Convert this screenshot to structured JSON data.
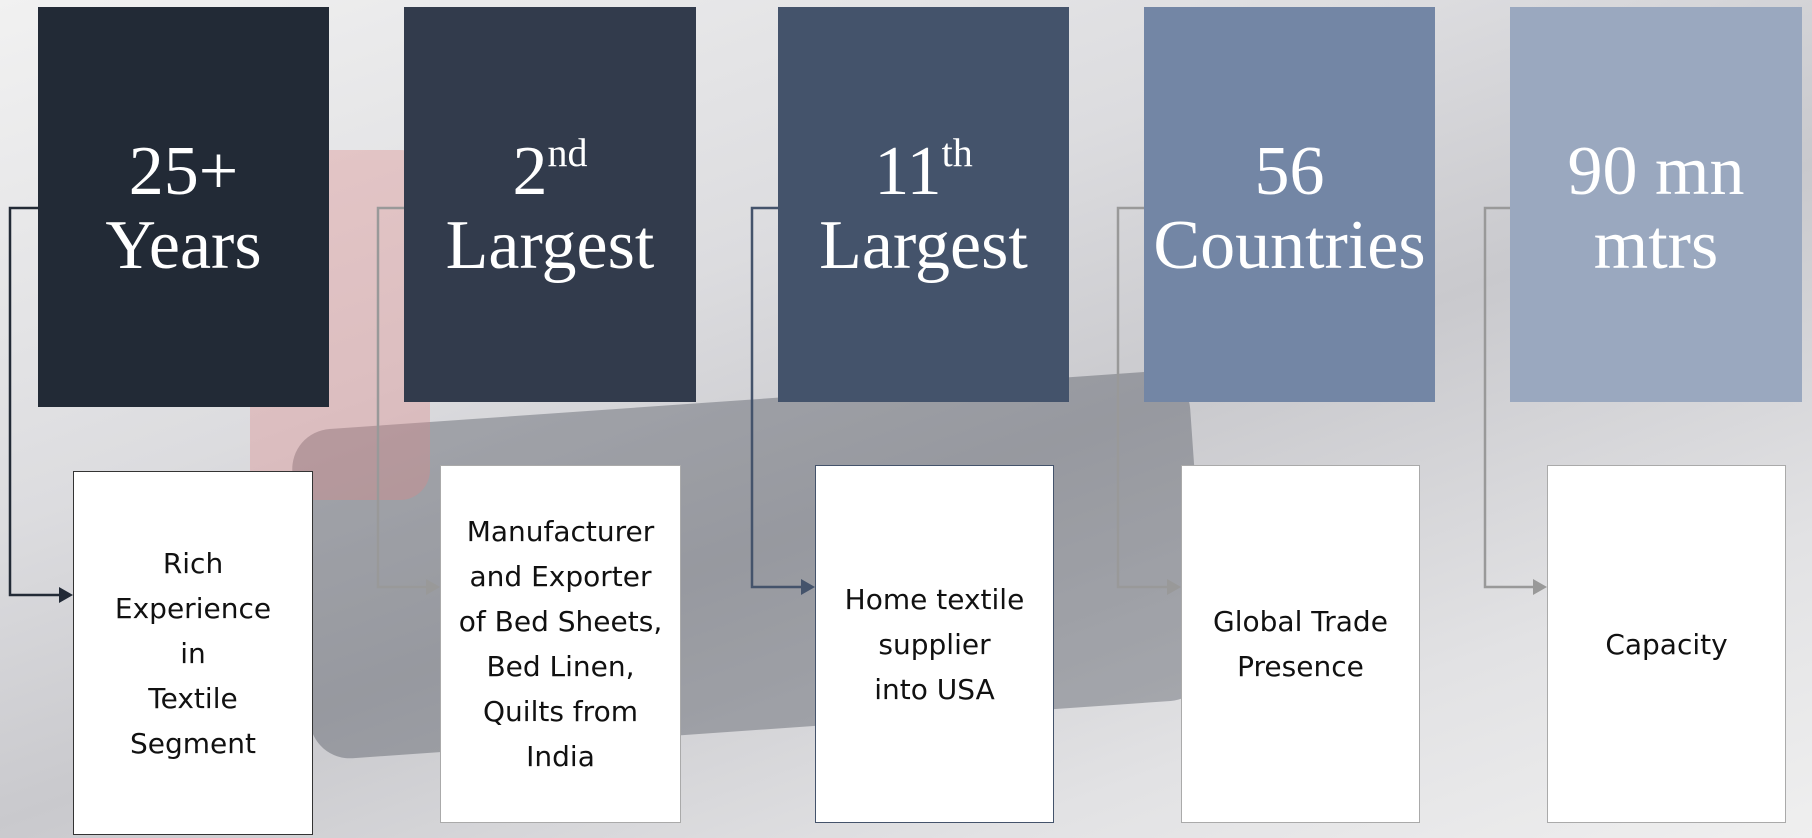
{
  "items": [
    {
      "headline": {
        "number": "25+",
        "word": "Years"
      },
      "description": [
        "Rich",
        "Experience",
        "in",
        "Textile",
        "Segment"
      ]
    },
    {
      "headline": {
        "number": "2",
        "sup": "nd",
        "word": "Largest"
      },
      "description": [
        "Manufacturer",
        "and Exporter",
        "of Bed Sheets,",
        "Bed Linen,",
        "Quilts from",
        "India"
      ]
    },
    {
      "headline": {
        "number": "11",
        "sup": "th",
        "word": "Largest"
      },
      "description": [
        "Home textile",
        "supplier",
        "into USA"
      ]
    },
    {
      "headline": {
        "number": "56",
        "word": "Countries"
      },
      "description": [
        "Global Trade",
        "Presence"
      ]
    },
    {
      "headline": {
        "number": "90 mn",
        "word": "mtrs"
      },
      "description": [
        "Capacity"
      ]
    }
  ]
}
